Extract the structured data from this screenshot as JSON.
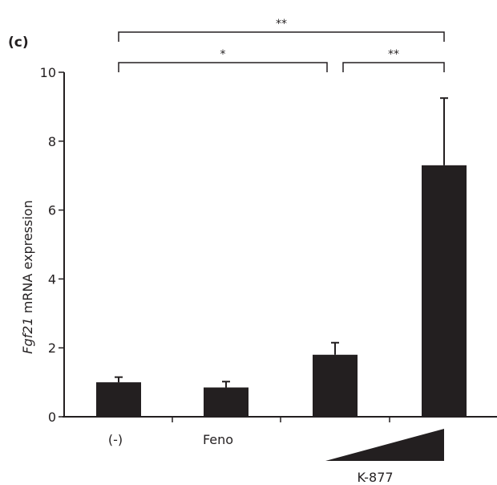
{
  "panel_label": "(c)",
  "chart_data": {
    "type": "bar",
    "categories": [
      "(-)",
      "Feno",
      "",
      ""
    ],
    "values": [
      1.0,
      0.85,
      1.8,
      7.3
    ],
    "errors": [
      0.15,
      0.17,
      0.35,
      1.95
    ],
    "ylabel_italic": "Fgf21",
    "ylabel_rest": " mRNA expression",
    "ylim": [
      0,
      10
    ],
    "yticks": [
      0,
      2,
      4,
      6,
      8,
      10
    ],
    "group_label": "K-877",
    "bar_color": "#231f20",
    "significance": [
      {
        "from": 0,
        "to": 2,
        "label": "*"
      },
      {
        "from": 2,
        "to": 3,
        "label": "**"
      },
      {
        "from": 0,
        "to": 3,
        "label": "**"
      }
    ]
  }
}
